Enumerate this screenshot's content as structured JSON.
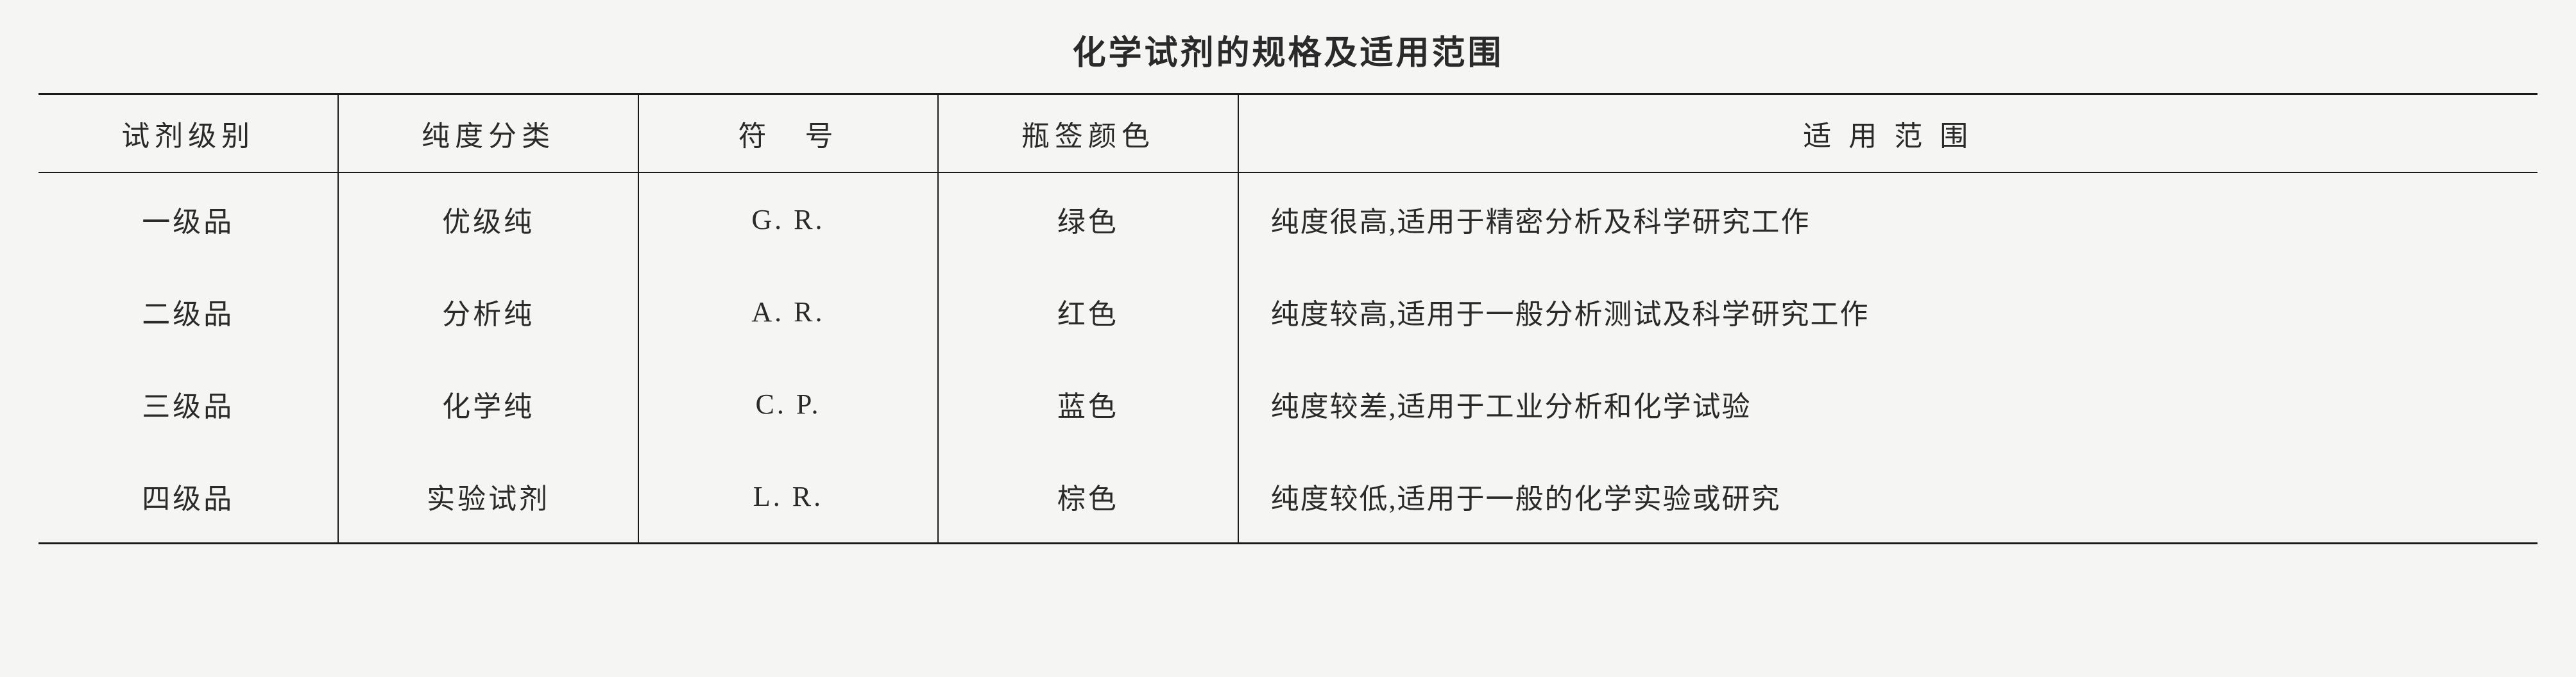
{
  "title": "化学试剂的规格及适用范围",
  "table": {
    "columns": [
      {
        "key": "level",
        "label": "试剂级别",
        "width": "12%",
        "align": "center"
      },
      {
        "key": "purity",
        "label": "纯度分类",
        "width": "12%",
        "align": "center"
      },
      {
        "key": "symbol",
        "label": "符　号",
        "width": "12%",
        "align": "center"
      },
      {
        "key": "color",
        "label": "瓶签颜色",
        "width": "12%",
        "align": "center"
      },
      {
        "key": "scope",
        "label": "适 用 范 围",
        "width": "52%",
        "align": "left"
      }
    ],
    "rows": [
      {
        "level": "一级品",
        "purity": "优级纯",
        "symbol": "G. R.",
        "color": "绿色",
        "scope": "纯度很高,适用于精密分析及科学研究工作"
      },
      {
        "level": "二级品",
        "purity": "分析纯",
        "symbol": "A. R.",
        "color": "红色",
        "scope": "纯度较高,适用于一般分析测试及科学研究工作"
      },
      {
        "level": "三级品",
        "purity": "化学纯",
        "symbol": "C. P.",
        "color": "蓝色",
        "scope": "纯度较差,适用于工业分析和化学试验"
      },
      {
        "level": "四级品",
        "purity": "实验试剂",
        "symbol": "L. R.",
        "color": "棕色",
        "scope": "纯度较低,适用于一般的化学实验或研究"
      }
    ]
  },
  "styling": {
    "background_color": "#f5f5f3",
    "text_color": "#2a2a2a",
    "border_color": "#1a1a1a",
    "title_fontsize": 52,
    "body_fontsize": 44,
    "font_family": "SimSun, 宋体, serif",
    "outer_border_width": 3,
    "inner_border_width": 2
  }
}
